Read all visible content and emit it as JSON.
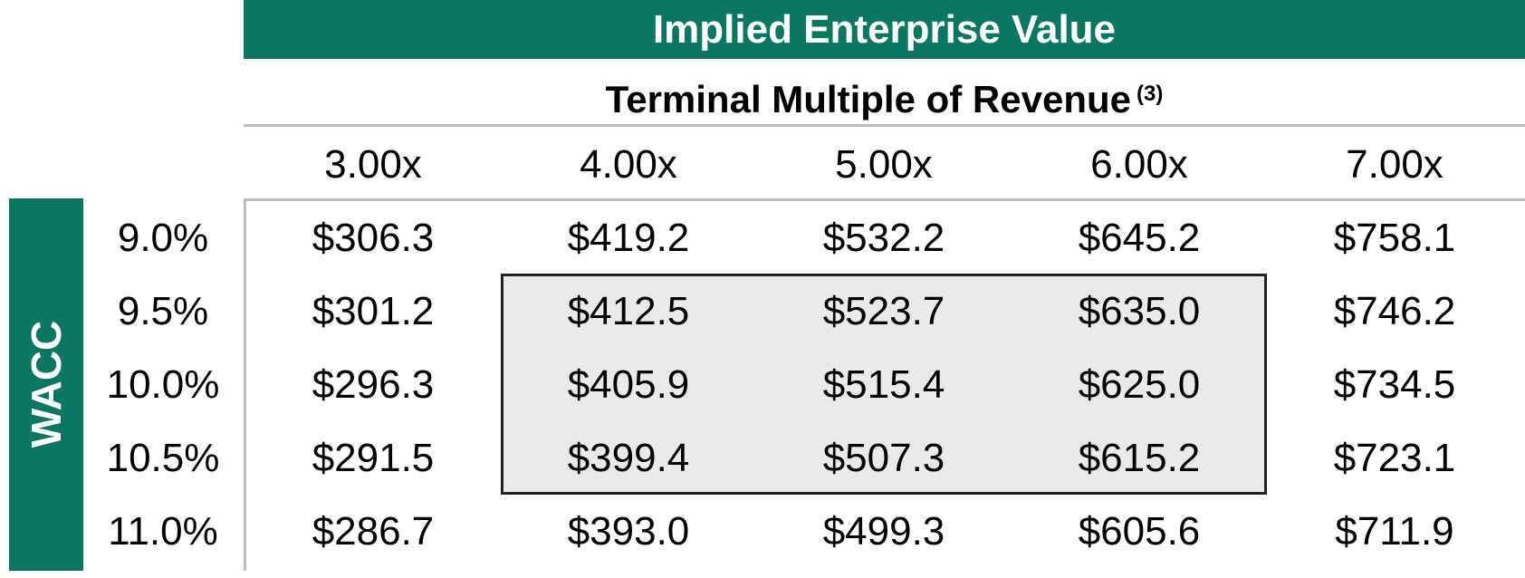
{
  "title": "Implied Enterprise Value",
  "subtitle": "Terminal Multiple of Revenue",
  "subtitle_footnote": "(3)",
  "row_axis_label": "WACC",
  "colors": {
    "accent": "#0b7762",
    "highlight_fill": "#e9eaeb",
    "rule": "#bdbdbd"
  },
  "columns": [
    "3.00x",
    "4.00x",
    "5.00x",
    "6.00x",
    "7.00x"
  ],
  "rows": [
    {
      "wacc": "9.0%",
      "values": [
        "$306.3",
        "$419.2",
        "$532.2",
        "$645.2",
        "$758.1"
      ]
    },
    {
      "wacc": "9.5%",
      "values": [
        "$301.2",
        "$412.5",
        "$523.7",
        "$635.0",
        "$746.2"
      ]
    },
    {
      "wacc": "10.0%",
      "values": [
        "$296.3",
        "$405.9",
        "$515.4",
        "$625.0",
        "$734.5"
      ]
    },
    {
      "wacc": "10.5%",
      "values": [
        "$291.5",
        "$399.4",
        "$507.3",
        "$615.2",
        "$723.1"
      ]
    },
    {
      "wacc": "11.0%",
      "values": [
        "$286.7",
        "$393.0",
        "$499.3",
        "$605.6",
        "$711.9"
      ]
    }
  ]
}
